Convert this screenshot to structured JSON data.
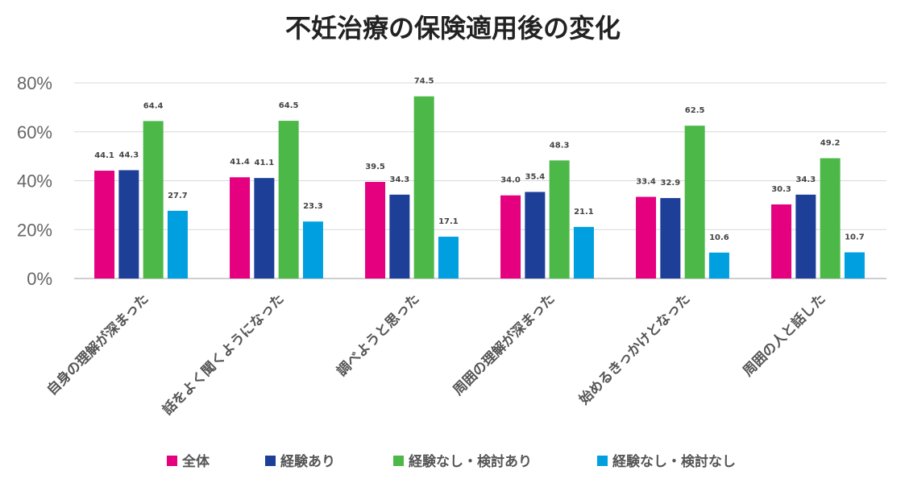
{
  "chart_data": {
    "type": "bar",
    "title": "不妊治療の保険適用後の変化",
    "xlabel": "",
    "ylabel": "",
    "ylim": [
      0,
      80
    ],
    "ytick_values": [
      0,
      20,
      40,
      60,
      80
    ],
    "ytick_labels": [
      "0%",
      "20%",
      "40%",
      "60%",
      "80%"
    ],
    "legend_position": "bottom",
    "grid": true,
    "categories": [
      "自身の理解が深まった",
      "話をよく聞くようになった",
      "調べようと思った",
      "周囲の理解が深まった",
      "始めるきっかけとなった",
      "周囲の人と話した"
    ],
    "series": [
      {
        "name": "全体",
        "color": "#e4007f",
        "values": [
          44.1,
          41.4,
          39.5,
          34.0,
          33.4,
          30.3
        ]
      },
      {
        "name": "経験あり",
        "color": "#1d3f98",
        "values": [
          44.3,
          41.1,
          34.3,
          35.4,
          32.9,
          34.3
        ]
      },
      {
        "name": "経験なし・検討あり",
        "color": "#4cb848",
        "values": [
          64.4,
          64.5,
          74.5,
          48.3,
          62.5,
          49.2
        ]
      },
      {
        "name": "経験なし・検討なし",
        "color": "#00a0e0",
        "values": [
          27.7,
          23.3,
          17.1,
          21.1,
          10.6,
          10.7
        ]
      }
    ]
  },
  "colors": {
    "grid": "#d9d9d9",
    "axis": "#bfbfbf"
  }
}
